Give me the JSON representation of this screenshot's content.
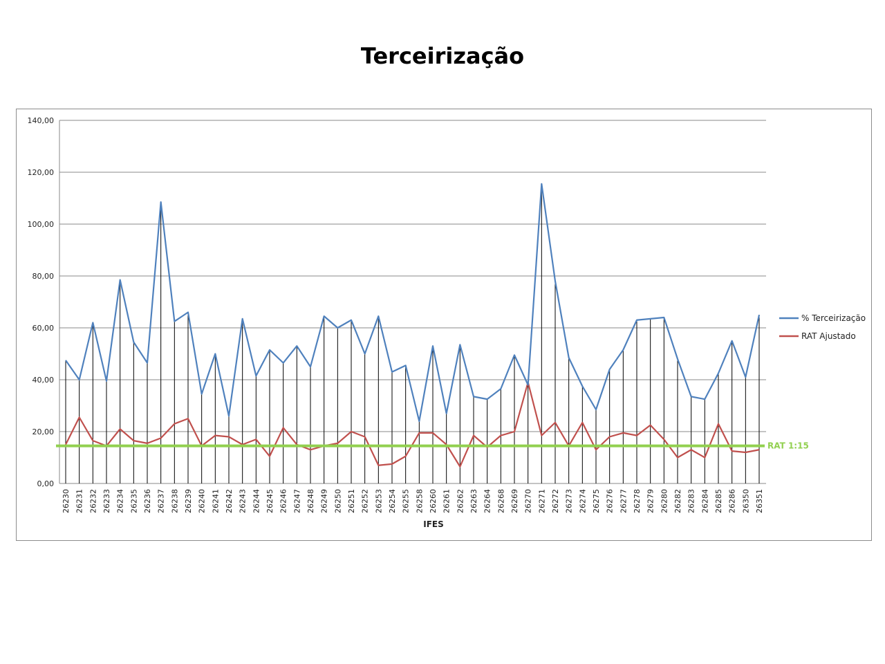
{
  "page": {
    "title": "Terceirização"
  },
  "chart_data": {
    "type": "line",
    "title": "Terceirização",
    "xlabel": "IFES",
    "ylabel": "",
    "ylim": [
      0,
      140
    ],
    "yticks": [
      "0,00",
      "20,00",
      "40,00",
      "60,00",
      "80,00",
      "100,00",
      "120,00",
      "140,00"
    ],
    "grid": true,
    "legend_position": "right",
    "categories": [
      "26230",
      "26231",
      "26232",
      "26233",
      "26234",
      "26235",
      "26236",
      "26237",
      "26238",
      "26239",
      "26240",
      "26241",
      "26242",
      "26243",
      "26244",
      "26245",
      "26246",
      "26247",
      "26248",
      "26249",
      "26250",
      "26251",
      "26252",
      "26253",
      "26254",
      "26255",
      "26258",
      "26260",
      "26261",
      "26262",
      "26263",
      "26264",
      "26268",
      "26269",
      "26270",
      "26271",
      "26272",
      "26273",
      "26274",
      "26275",
      "26276",
      "26277",
      "26278",
      "26279",
      "26280",
      "26282",
      "26283",
      "26284",
      "26285",
      "26286",
      "26350",
      "26351"
    ],
    "series": [
      {
        "name": "% Terceirização",
        "color": "#4f81bd",
        "values": [
          47.5,
          40.0,
          62.0,
          39.5,
          78.5,
          54.5,
          46.5,
          108.5,
          62.5,
          66.0,
          34.5,
          50.0,
          26.0,
          63.5,
          41.5,
          51.5,
          46.5,
          53.0,
          45.0,
          64.5,
          60.0,
          63.0,
          50.0,
          64.5,
          43.0,
          45.5,
          24.0,
          53.0,
          27.0,
          53.5,
          33.5,
          32.5,
          36.5,
          49.5,
          38.0,
          115.5,
          78.0,
          48.5,
          37.5,
          28.5,
          44.0,
          51.5,
          63.0,
          63.5,
          64.0,
          48.0,
          33.5,
          32.5,
          42.5,
          55.0,
          41.0,
          65.0
        ]
      },
      {
        "name": "RAT Ajustado",
        "color": "#c0504d",
        "values": [
          15.0,
          25.5,
          16.5,
          14.5,
          21.0,
          16.5,
          15.5,
          17.5,
          23.0,
          25.0,
          14.5,
          18.5,
          18.0,
          15.0,
          17.0,
          10.5,
          21.5,
          15.0,
          13.0,
          14.5,
          15.5,
          20.0,
          18.0,
          7.0,
          7.5,
          10.5,
          19.5,
          19.5,
          15.0,
          6.5,
          18.5,
          14.0,
          18.5,
          20.0,
          39.0,
          18.5,
          23.5,
          14.5,
          23.5,
          13.0,
          18.0,
          19.5,
          18.5,
          22.5,
          17.0,
          10.0,
          13.0,
          10.0,
          23.0,
          12.5,
          12.0,
          13.0
        ]
      }
    ],
    "reference_line": {
      "label": "RAT 1:15",
      "value": 14.5,
      "color": "#92d050"
    }
  }
}
